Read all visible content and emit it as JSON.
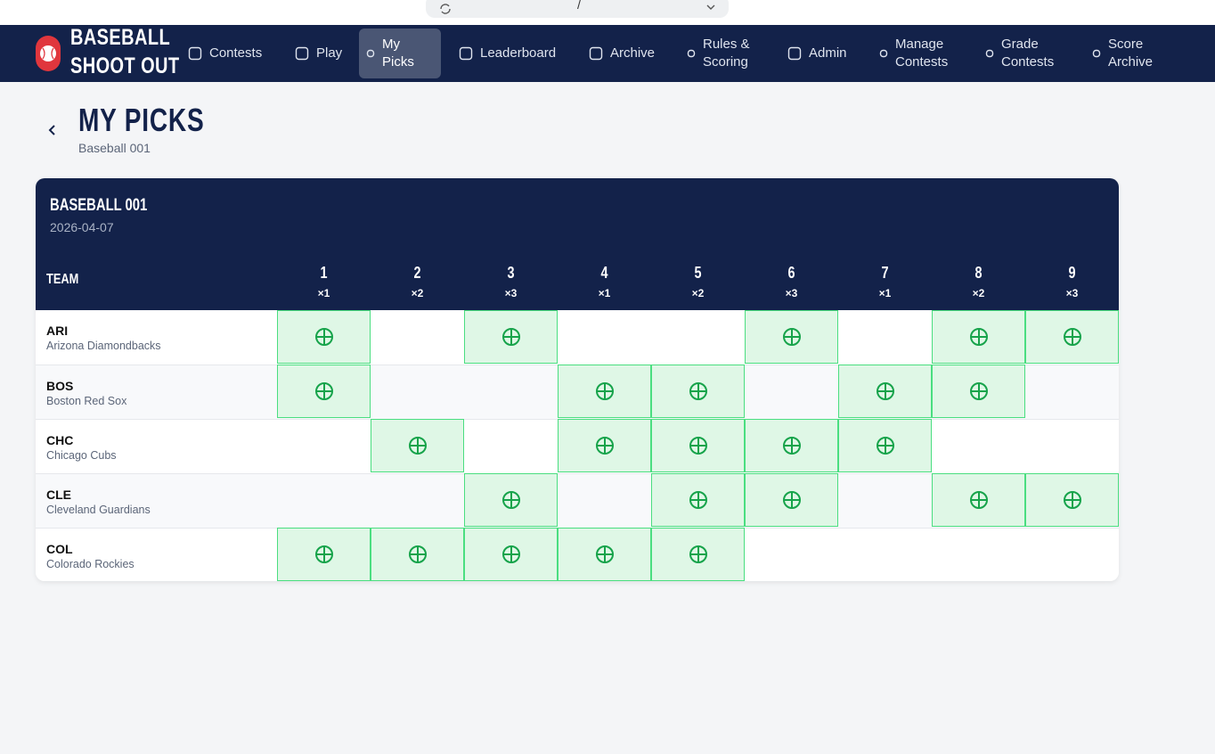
{
  "browser": {
    "url": "/"
  },
  "nav": {
    "brand": [
      "BASEBALL",
      "SHOOT OUT"
    ],
    "items": [
      {
        "label": "Contests",
        "active": false
      },
      {
        "label": "Play",
        "active": false
      },
      {
        "label": "My Picks",
        "active": true
      },
      {
        "label": "Leaderboard",
        "active": false
      },
      {
        "label": "Archive",
        "active": false
      },
      {
        "label": "Rules & Scoring",
        "active": false
      },
      {
        "label": "Admin",
        "active": false
      },
      {
        "label": "Manage Contests",
        "active": false
      },
      {
        "label": "Grade Contests",
        "active": false
      },
      {
        "label": "Score Archive",
        "active": false
      }
    ]
  },
  "header": {
    "title": "MY PICKS",
    "subtitle": "Baseball 001"
  },
  "card": {
    "title": "BASEBALL 001",
    "date": "2026-04-07"
  },
  "table": {
    "team_header": "TEAM",
    "columns": [
      {
        "number": "1",
        "multiplier": "×1"
      },
      {
        "number": "2",
        "multiplier": "×2"
      },
      {
        "number": "3",
        "multiplier": "×3"
      },
      {
        "number": "4",
        "multiplier": "×1"
      },
      {
        "number": "5",
        "multiplier": "×2"
      },
      {
        "number": "6",
        "multiplier": "×3"
      },
      {
        "number": "7",
        "multiplier": "×1"
      },
      {
        "number": "8",
        "multiplier": "×2"
      },
      {
        "number": "9",
        "multiplier": "×3"
      }
    ],
    "rows": [
      {
        "abbr": "ARI",
        "name": "Arizona Diamondbacks",
        "picks": [
          true,
          false,
          true,
          false,
          false,
          true,
          false,
          true,
          true
        ]
      },
      {
        "abbr": "BOS",
        "name": "Boston Red Sox",
        "picks": [
          true,
          false,
          false,
          true,
          true,
          false,
          true,
          true,
          false
        ]
      },
      {
        "abbr": "CHC",
        "name": "Chicago Cubs",
        "picks": [
          false,
          true,
          false,
          true,
          true,
          true,
          true,
          false,
          false
        ]
      },
      {
        "abbr": "CLE",
        "name": "Cleveland Guardians",
        "picks": [
          false,
          false,
          true,
          false,
          true,
          true,
          false,
          true,
          true
        ]
      },
      {
        "abbr": "COL",
        "name": "Colorado Rockies",
        "picks": [
          true,
          true,
          true,
          true,
          true,
          false,
          false,
          false,
          false
        ]
      }
    ]
  }
}
